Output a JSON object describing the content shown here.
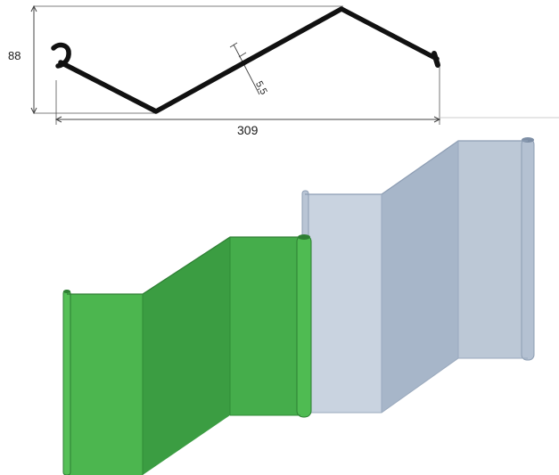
{
  "drawing": {
    "height_dim": "88",
    "width_dim": "309",
    "thickness_dim": "5,5"
  },
  "colors": {
    "profile_line": "#111111",
    "dim_line": "#444444",
    "green_face_front": "#4cb64f",
    "green_face_mid": "#3b9d42",
    "green_face_back": "#45ad4b",
    "green_edge": "#2d7e33",
    "blue_face_front": "#c9d3e0",
    "blue_face_mid": "#a7b6c9",
    "blue_face_back": "#bcc8d6",
    "blue_edge": "#8d9db3"
  }
}
